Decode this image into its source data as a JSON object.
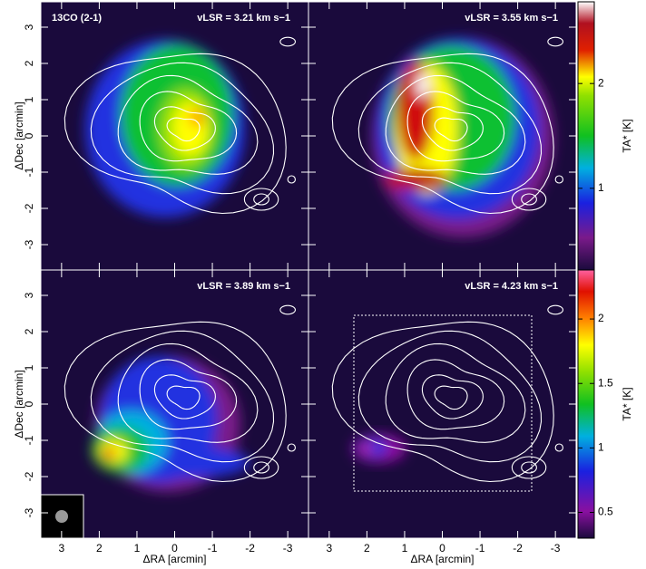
{
  "chart_data": [
    {
      "type": "heatmap",
      "title": "vLSR = 3.21 km s−1",
      "label": "13CO (2-1)",
      "xlim": [
        3.55,
        -3.55
      ],
      "ylim": [
        -3.7,
        3.7
      ],
      "xticks": [
        3,
        2,
        1,
        0,
        -1,
        -2,
        -3
      ],
      "yticks": [
        -3,
        -2,
        -1,
        0,
        1,
        2,
        3
      ],
      "ylabel": "ΔDec [arcmin]"
    },
    {
      "type": "heatmap",
      "title": "vLSR = 3.55 km s−1",
      "xlim": [
        3.55,
        -3.55
      ],
      "ylim": [
        -3.7,
        3.7
      ],
      "xticks": [
        3,
        2,
        1,
        0,
        -1,
        -2,
        -3
      ],
      "yticks": [
        -3,
        -2,
        -1,
        0,
        1,
        2,
        3
      ],
      "colorbar": {
        "label": "TA* [K]",
        "lim": [
          0.22,
          2.78
        ],
        "ticks": [
          1,
          2
        ]
      }
    },
    {
      "type": "heatmap",
      "title": "vLSR = 3.89 km s−1",
      "xlim": [
        3.55,
        -3.55
      ],
      "ylim": [
        -3.7,
        3.7
      ],
      "xticks": [
        3,
        2,
        1,
        0,
        -1,
        -2,
        -3
      ],
      "yticks": [
        -3,
        -2,
        -1,
        0,
        1,
        2,
        3
      ],
      "xlabel": "ΔRA [arcmin]",
      "ylabel": "ΔDec [arcmin]"
    },
    {
      "type": "heatmap",
      "title": "vLSR = 4.23 km s−1",
      "xlim": [
        3.55,
        -3.55
      ],
      "ylim": [
        -3.7,
        3.7
      ],
      "xticks": [
        3,
        2,
        1,
        0,
        -1,
        -2,
        -3
      ],
      "yticks": [
        -3,
        -2,
        -1,
        0,
        1,
        2,
        3
      ],
      "xlabel": "ΔRA [arcmin]",
      "colorbar": {
        "label": "TA* [K]",
        "lim": [
          0.3,
          2.38
        ],
        "ticks": [
          0.5,
          1,
          1.5,
          2
        ]
      }
    }
  ]
}
